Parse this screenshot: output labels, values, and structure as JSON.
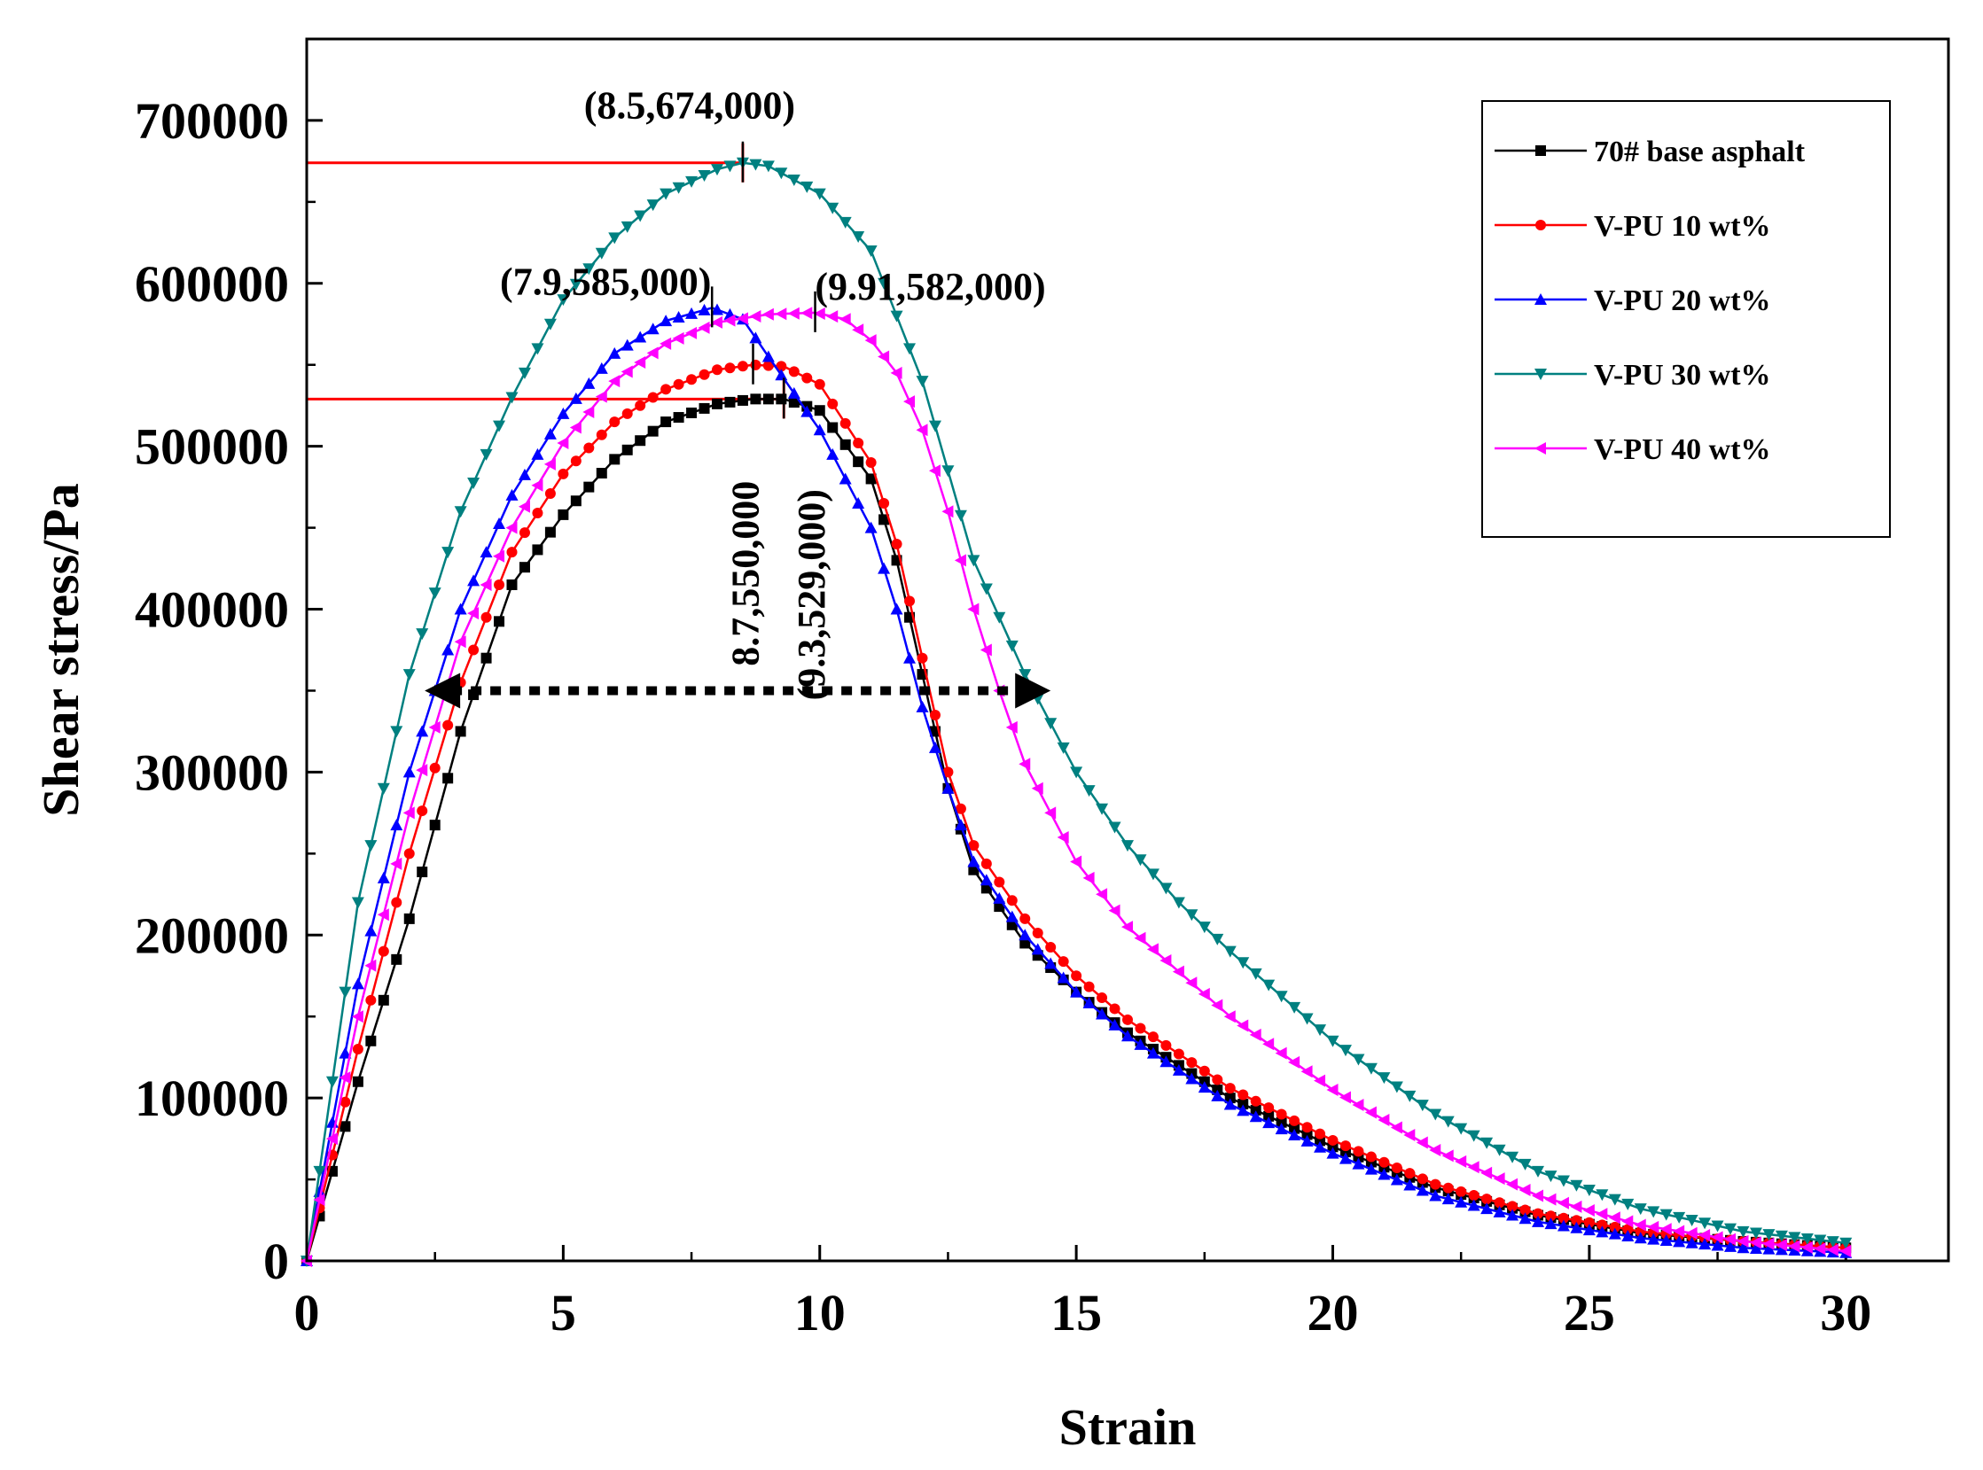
{
  "chart_data": {
    "type": "line",
    "xlabel": "Strain",
    "ylabel": "Shear stress/Pa",
    "xlim": [
      0,
      32
    ],
    "ylim": [
      0,
      750000
    ],
    "x_ticks": [
      "0",
      "5",
      "10",
      "15",
      "20",
      "25",
      "30"
    ],
    "y_ticks": [
      "0",
      "100000",
      "200000",
      "300000",
      "400000",
      "500000",
      "600000",
      "700000"
    ],
    "legend_position": "top-right",
    "series": [
      {
        "name": "70# base asphalt",
        "color": "#000000",
        "marker": "square",
        "x": [
          0,
          1,
          2,
          3,
          4,
          5,
          6,
          7,
          8,
          8.7,
          9.3,
          10,
          11,
          11.5,
          12,
          12.5,
          13,
          14,
          15,
          16,
          18,
          20,
          22,
          24,
          26,
          28,
          30
        ],
        "y": [
          0,
          110000,
          210000,
          325000,
          415000,
          458000,
          492000,
          515000,
          526000,
          529000,
          529000,
          522000,
          480000,
          430000,
          360000,
          290000,
          240000,
          195000,
          165000,
          140000,
          100000,
          70000,
          45000,
          28000,
          17000,
          12000,
          8000
        ]
      },
      {
        "name": "V-PU 10 wt%",
        "color": "#ff0000",
        "marker": "circle",
        "x": [
          0,
          1,
          2,
          3,
          4,
          5,
          6,
          7,
          8,
          8.7,
          9.3,
          10,
          11,
          11.5,
          12,
          12.5,
          13,
          14,
          15,
          16,
          18,
          20,
          22,
          24,
          26,
          28,
          30
        ],
        "y": [
          0,
          130000,
          250000,
          355000,
          435000,
          483000,
          515000,
          535000,
          547000,
          550000,
          549000,
          538000,
          490000,
          440000,
          370000,
          300000,
          255000,
          210000,
          175000,
          148000,
          106000,
          74000,
          47000,
          29000,
          18000,
          12000,
          8000
        ]
      },
      {
        "name": "V-PU 20 wt%",
        "color": "#0000ff",
        "marker": "triangle-up",
        "x": [
          0,
          1,
          2,
          3,
          4,
          5,
          6,
          7,
          7.9,
          8.5,
          9,
          10,
          11,
          11.5,
          12,
          12.5,
          13,
          14,
          15,
          16,
          18,
          20,
          22,
          24,
          26,
          28,
          30
        ],
        "y": [
          0,
          170000,
          300000,
          400000,
          470000,
          520000,
          557000,
          577000,
          585000,
          578000,
          555000,
          510000,
          450000,
          400000,
          340000,
          290000,
          245000,
          200000,
          165000,
          138000,
          96000,
          66000,
          40000,
          24000,
          14000,
          8000,
          5000
        ]
      },
      {
        "name": "V-PU 30 wt%",
        "color": "#008080",
        "marker": "triangle-down",
        "x": [
          0,
          1,
          2,
          3,
          4,
          5,
          6,
          7,
          8,
          8.5,
          9,
          10,
          11,
          12,
          13,
          14,
          15,
          16,
          17,
          18,
          20,
          22,
          24,
          26,
          28,
          30
        ],
        "y": [
          0,
          220000,
          360000,
          460000,
          530000,
          590000,
          628000,
          655000,
          670000,
          674000,
          672000,
          655000,
          620000,
          540000,
          430000,
          360000,
          300000,
          255000,
          220000,
          190000,
          135000,
          90000,
          55000,
          32000,
          18000,
          11000
        ]
      },
      {
        "name": "V-PU 40 wt%",
        "color": "#ff00ff",
        "marker": "triangle-left",
        "x": [
          0,
          1,
          2,
          3,
          4,
          5,
          6,
          7,
          8,
          9,
          9.91,
          10.5,
          11,
          11.5,
          12,
          12.5,
          13,
          13.5,
          14,
          15,
          16,
          18,
          20,
          22,
          24,
          26,
          28,
          30
        ],
        "y": [
          0,
          150000,
          275000,
          380000,
          450000,
          502000,
          540000,
          563000,
          576000,
          581000,
          582000,
          578000,
          565000,
          545000,
          510000,
          460000,
          400000,
          350000,
          305000,
          245000,
          205000,
          150000,
          105000,
          68000,
          40000,
          22000,
          12000,
          6000
        ]
      }
    ],
    "annotations": [
      {
        "text": "(8.5,674,000)",
        "x": 8.5,
        "y": 674000
      },
      {
        "text": "(7.9,585,000)",
        "x": 7.9,
        "y": 585000
      },
      {
        "text": "(9.91,582,000)",
        "x": 9.91,
        "y": 582000
      },
      {
        "text": "8.7,550,000",
        "x": 8.7,
        "y": 550000
      },
      {
        "text": "(9.3,529,000)",
        "x": 9.3,
        "y": 529000
      }
    ],
    "reference_lines": [
      {
        "color": "#ff0000",
        "y": 674000,
        "x_end": 8.5
      },
      {
        "color": "#ff0000",
        "y": 529000,
        "x_end": 9.3
      }
    ],
    "double_arrow": {
      "y": 350000,
      "x_start": 2.3,
      "x_end": 14.5
    }
  }
}
